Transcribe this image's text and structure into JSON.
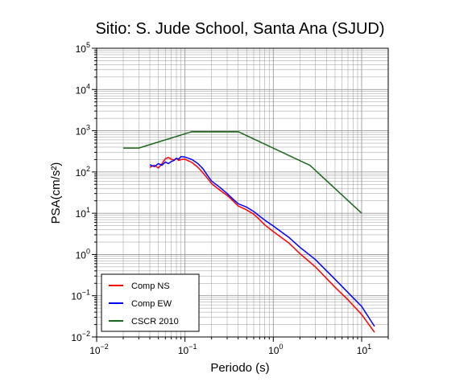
{
  "chart_data": {
    "type": "line",
    "title": "Sitio: S. Jude School, Santa Ana (SJUD)",
    "xlabel": "Periodo (s)",
    "ylabel": "PSA(cm/s²)",
    "xscale": "log",
    "yscale": "log",
    "xlim": [
      0.01,
      20
    ],
    "ylim": [
      0.01,
      100000
    ],
    "x_tick_labels": [
      "10⁻²",
      "10⁻¹",
      "10⁰",
      "10¹"
    ],
    "y_tick_labels": [
      "10⁻²",
      "10⁻¹",
      "10⁰",
      "10¹",
      "10²",
      "10³",
      "10⁴",
      "10⁵"
    ],
    "grid": true,
    "legend_position": "bottom-left",
    "series": [
      {
        "name": "Comp NS",
        "color": "#ff0000",
        "x": [
          0.04,
          0.045,
          0.05,
          0.055,
          0.06,
          0.065,
          0.07,
          0.075,
          0.08,
          0.085,
          0.09,
          0.1,
          0.11,
          0.12,
          0.14,
          0.16,
          0.18,
          0.2,
          0.25,
          0.3,
          0.35,
          0.4,
          0.5,
          0.6,
          0.7,
          0.8,
          1,
          1.5,
          2,
          3,
          5,
          7,
          10,
          14
        ],
        "y": [
          130,
          145,
          125,
          160,
          210,
          225,
          205,
          195,
          215,
          190,
          200,
          205,
          185,
          170,
          130,
          95,
          70,
          52,
          36,
          27,
          20,
          15,
          12,
          9.5,
          7,
          5.2,
          3.6,
          1.9,
          1.05,
          0.5,
          0.16,
          0.08,
          0.035,
          0.013
        ]
      },
      {
        "name": "Comp EW",
        "color": "#0000ff",
        "x": [
          0.04,
          0.045,
          0.05,
          0.055,
          0.06,
          0.065,
          0.07,
          0.075,
          0.08,
          0.085,
          0.09,
          0.1,
          0.11,
          0.12,
          0.14,
          0.16,
          0.18,
          0.2,
          0.25,
          0.3,
          0.35,
          0.4,
          0.5,
          0.6,
          0.7,
          0.8,
          1,
          1.5,
          2,
          3,
          5,
          7,
          10,
          14
        ],
        "y": [
          150,
          135,
          160,
          145,
          175,
          160,
          180,
          190,
          215,
          205,
          235,
          230,
          215,
          200,
          160,
          120,
          82,
          60,
          42,
          30,
          22,
          17,
          14,
          11,
          8.5,
          6.8,
          4.9,
          2.6,
          1.5,
          0.75,
          0.25,
          0.12,
          0.055,
          0.018
        ]
      },
      {
        "name": "CSCR 2010",
        "color": "#1a661a",
        "x": [
          0.02,
          0.03,
          0.12,
          0.4,
          2.6,
          10
        ],
        "y": [
          380,
          380,
          950,
          950,
          145,
          10
        ]
      }
    ]
  }
}
